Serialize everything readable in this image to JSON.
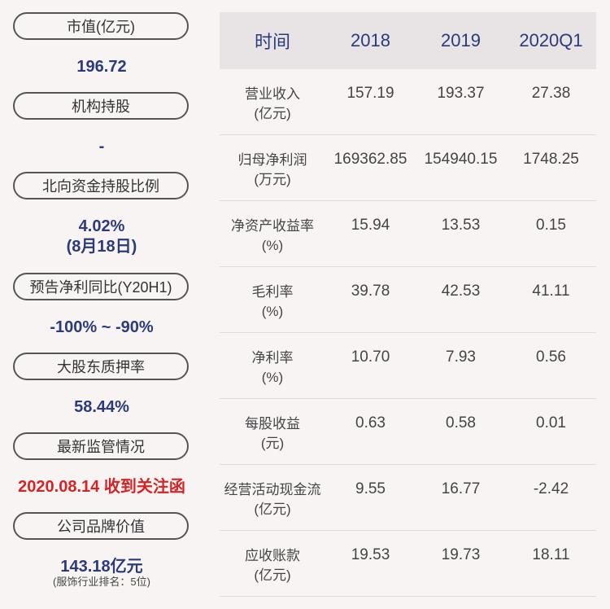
{
  "left": {
    "items": [
      {
        "label": "市值(亿元)",
        "value": "196.72"
      },
      {
        "label": "机构持股",
        "value": "-"
      },
      {
        "label": "北向资金持股比例",
        "value": "4.02%",
        "value2": "(8月18日)"
      },
      {
        "label": "预告净利同比(Y20H1)",
        "value": "-100% ~ -90%"
      },
      {
        "label": "大股东质押率",
        "value": "58.44%"
      },
      {
        "label": "最新监管情况",
        "value": "2020.08.14 收到关注函"
      },
      {
        "label": "公司品牌价值",
        "value": "143.18亿元",
        "note": "(服饰行业排名：5位)"
      }
    ]
  },
  "table": {
    "headers": [
      "时间",
      "2018",
      "2019",
      "2020Q1"
    ],
    "rows": [
      {
        "label": "营业收入",
        "unit": "(亿元)",
        "values": [
          "157.19",
          "193.37",
          "27.38"
        ]
      },
      {
        "label": "归母净利润",
        "unit": "(万元)",
        "values": [
          "169362.85",
          "154940.15",
          "1748.25"
        ]
      },
      {
        "label": "净资产收益率",
        "unit": "(%)",
        "values": [
          "15.94",
          "13.53",
          "0.15"
        ]
      },
      {
        "label": "毛利率",
        "unit": "(%)",
        "values": [
          "39.78",
          "42.53",
          "41.11"
        ]
      },
      {
        "label": "净利率",
        "unit": "(%)",
        "values": [
          "10.70",
          "7.93",
          "0.56"
        ]
      },
      {
        "label": "每股收益",
        "unit": "(元)",
        "values": [
          "0.63",
          "0.58",
          "0.01"
        ]
      },
      {
        "label": "经营活动现金流",
        "unit": "(亿元)",
        "values": [
          "9.55",
          "16.77",
          "-2.42"
        ]
      },
      {
        "label": "应收账款",
        "unit": "(亿元)",
        "values": [
          "19.53",
          "19.73",
          "18.11"
        ]
      }
    ]
  }
}
